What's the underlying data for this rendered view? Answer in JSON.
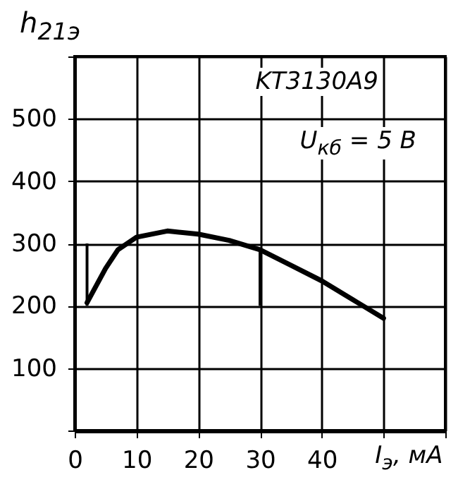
{
  "chart_data": {
    "type": "line",
    "ylabel": "h$_{21э}$",
    "xlabel": "I$_{э}$, мА",
    "annotations": [
      "KT3130A9",
      "U$_{кб}$ = 5 В"
    ],
    "x": [
      2,
      5,
      7,
      10,
      15,
      20,
      25,
      30,
      35,
      40,
      45,
      50
    ],
    "series": [
      {
        "color": "#000000",
        "values": [
          205,
          260,
          290,
          310,
          320,
          315,
          305,
          290,
          265,
          240,
          210,
          180
        ],
        "errors": [
          [
            200,
            300
          ],
          null,
          null,
          null,
          null,
          null,
          null,
          [
            200,
            290
          ],
          null,
          null,
          null,
          null
        ]
      }
    ],
    "xlim": [
      0,
      60
    ],
    "xticks": [
      0,
      10,
      20,
      30,
      40,
      {
        "value": 50,
        "label": null
      },
      {
        "value": 60,
        "label": null
      }
    ],
    "ylim": [
      0,
      600
    ],
    "yticks": [
      {
        "value": 0,
        "label": null
      },
      100,
      200,
      300,
      400,
      500,
      {
        "value": 600,
        "label": null
      }
    ],
    "grid": true,
    "marker": "none",
    "line_style": "solid"
  }
}
